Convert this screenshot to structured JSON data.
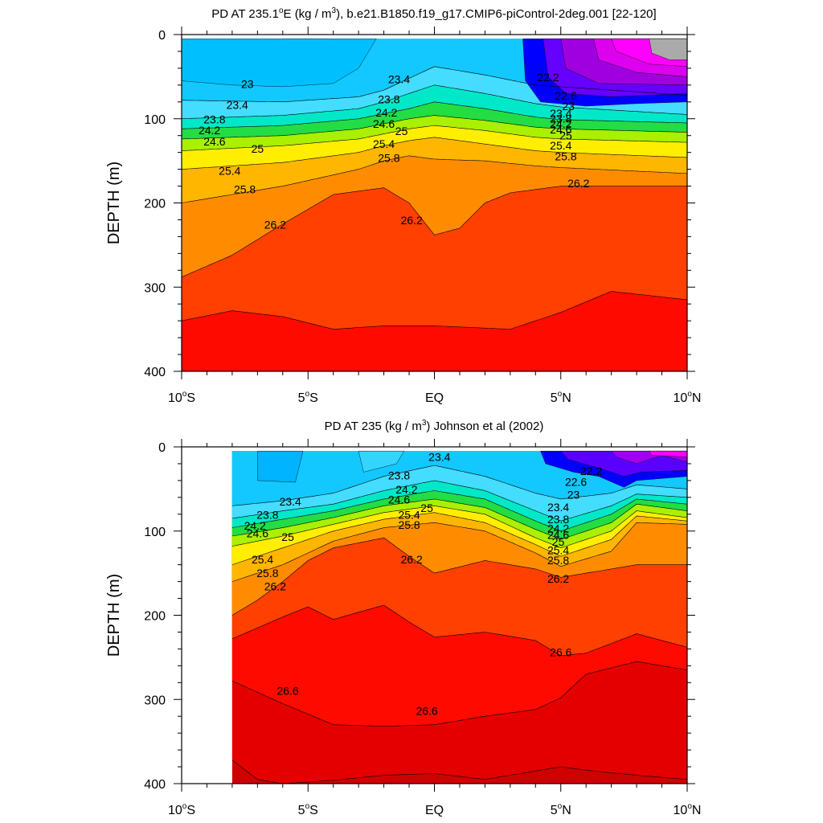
{
  "chart_data": [
    {
      "type": "contour",
      "title": "PD AT 235.1°E (kg / m³), b.e21.B1850.f19_g17.CMIP6-piControl-2deg.001 [22-120]",
      "title_parts": {
        "prefix": "PD AT 235.1",
        "deg": "o",
        "mid": "E (kg / m",
        "sup": "3",
        "suffix": "), b.e21.B1850.f19_g17.CMIP6-piControl-2deg.001 [22-120]"
      },
      "ylabel": "DEPTH (m)",
      "xlabel": "",
      "x_range": [
        -10,
        10
      ],
      "y_range": [
        0,
        400
      ],
      "y_reversed": true,
      "x_ticks": [
        {
          "value": -10,
          "num": "10",
          "deg": "o",
          "hem": "S"
        },
        {
          "value": -5,
          "num": "5",
          "deg": "o",
          "hem": "S"
        },
        {
          "value": 0,
          "num": "EQ",
          "deg": "",
          "hem": ""
        },
        {
          "value": 5,
          "num": "5",
          "deg": "o",
          "hem": "N"
        },
        {
          "value": 10,
          "num": "10",
          "deg": "o",
          "hem": "N"
        }
      ],
      "y_ticks": [
        0,
        100,
        200,
        300,
        400
      ],
      "data_x_start": -10,
      "top_depth": 5,
      "contour_depths_m": [
        {
          "sigma": 23.4,
          "x": [
            -10,
            -6,
            -3,
            -2,
            -1,
            0,
            2,
            4,
            5,
            10
          ],
          "depth": [
            78,
            80,
            74,
            66,
            52,
            38,
            48,
            60,
            62,
            72
          ]
        },
        {
          "sigma": 23.8,
          "x": [
            -10,
            -6,
            -3,
            -2,
            -1,
            0,
            2,
            4,
            5,
            10
          ],
          "depth": [
            100,
            96,
            88,
            80,
            70,
            60,
            70,
            82,
            86,
            95
          ]
        },
        {
          "sigma": 24.2,
          "x": [
            -10,
            -6,
            -3,
            -2,
            -1,
            0,
            2,
            4,
            5,
            10
          ],
          "depth": [
            112,
            108,
            100,
            94,
            88,
            80,
            88,
            98,
            101,
            105
          ]
        },
        {
          "sigma": 24.6,
          "x": [
            -10,
            -6,
            -3,
            -2,
            -1,
            0,
            2,
            4,
            5,
            10
          ],
          "depth": [
            124,
            120,
            112,
            106,
            100,
            96,
            102,
            110,
            112,
            116
          ]
        },
        {
          "sigma": 25,
          "x": [
            -10,
            -6,
            -3,
            -2,
            -1,
            0,
            2,
            4,
            5,
            10
          ],
          "depth": [
            138,
            132,
            124,
            118,
            112,
            108,
            114,
            122,
            124,
            128
          ]
        },
        {
          "sigma": 25.4,
          "x": [
            -10,
            -6,
            -3,
            -2,
            -1,
            0,
            2,
            4,
            5,
            10
          ],
          "depth": [
            160,
            152,
            140,
            132,
            126,
            122,
            130,
            138,
            140,
            146
          ]
        },
        {
          "sigma": 25.8,
          "x": [
            -10,
            -6,
            -3,
            -2,
            -1,
            0,
            2,
            4,
            5,
            10
          ],
          "depth": [
            200,
            180,
            160,
            150,
            144,
            148,
            150,
            156,
            158,
            165
          ]
        },
        {
          "sigma": 26.2,
          "x": [
            -10,
            -8,
            -6,
            -4,
            -2,
            -1,
            0,
            1,
            2,
            3,
            5,
            8,
            10
          ],
          "depth": [
            288,
            262,
            225,
            190,
            182,
            200,
            238,
            230,
            200,
            188,
            180,
            180,
            180
          ]
        },
        {
          "sigma": 26.6,
          "x": [
            -10,
            -8,
            -6,
            -4,
            -2,
            0,
            3,
            5,
            7,
            10
          ],
          "depth": [
            340,
            328,
            335,
            350,
            346,
            346,
            350,
            330,
            305,
            315
          ]
        }
      ],
      "contour_labels": [
        {
          "text": "23",
          "x": -7.4,
          "depth": 60
        },
        {
          "text": "23.4",
          "x": -7.8,
          "depth": 85
        },
        {
          "text": "23.8",
          "x": -8.7,
          "depth": 102
        },
        {
          "text": "24.2",
          "x": -8.9,
          "depth": 115
        },
        {
          "text": "24.6",
          "x": -8.7,
          "depth": 128
        },
        {
          "text": "25",
          "x": -7.0,
          "depth": 137
        },
        {
          "text": "25.4",
          "x": -8.1,
          "depth": 163
        },
        {
          "text": "25.8",
          "x": -7.5,
          "depth": 185
        },
        {
          "text": "26.2",
          "x": -6.3,
          "depth": 227
        },
        {
          "text": "23.4",
          "x": -1.4,
          "depth": 54
        },
        {
          "text": "23.8",
          "x": -1.8,
          "depth": 78
        },
        {
          "text": "24.2",
          "x": -1.9,
          "depth": 94
        },
        {
          "text": "24.6",
          "x": -2.0,
          "depth": 107
        },
        {
          "text": "25",
          "x": -1.3,
          "depth": 116
        },
        {
          "text": "25.4",
          "x": -2.0,
          "depth": 131
        },
        {
          "text": "25.8",
          "x": -1.8,
          "depth": 148
        },
        {
          "text": "26.2",
          "x": -0.9,
          "depth": 222
        },
        {
          "text": "22.2",
          "x": 4.5,
          "depth": 52
        },
        {
          "text": "22.6",
          "x": 5.2,
          "depth": 74
        },
        {
          "text": "23",
          "x": 5.3,
          "depth": 86
        },
        {
          "text": "23.4",
          "x": 5.0,
          "depth": 95
        },
        {
          "text": "23.8",
          "x": 5.0,
          "depth": 101
        },
        {
          "text": "24.2",
          "x": 5.0,
          "depth": 107
        },
        {
          "text": "24.6",
          "x": 5.0,
          "depth": 114
        },
        {
          "text": "25",
          "x": 5.2,
          "depth": 121
        },
        {
          "text": "25.4",
          "x": 5.0,
          "depth": 133
        },
        {
          "text": "25.8",
          "x": 5.2,
          "depth": 146
        },
        {
          "text": "26.2",
          "x": 5.7,
          "depth": 178
        }
      ]
    },
    {
      "type": "contour",
      "title": "PD AT 235 (kg / m³) Johnson et al (2002)",
      "title_parts": {
        "prefix": "PD AT 235",
        "deg": "",
        "mid": " (kg / m",
        "sup": "3",
        "suffix": ") Johnson et al (2002)"
      },
      "ylabel": "DEPTH (m)",
      "xlabel": "",
      "x_range": [
        -10,
        10
      ],
      "y_range": [
        0,
        400
      ],
      "y_reversed": true,
      "x_ticks": [
        {
          "value": -10,
          "num": "10",
          "deg": "o",
          "hem": "S"
        },
        {
          "value": -5,
          "num": "5",
          "deg": "o",
          "hem": "S"
        },
        {
          "value": 0,
          "num": "EQ",
          "deg": "",
          "hem": ""
        },
        {
          "value": 5,
          "num": "5",
          "deg": "o",
          "hem": "N"
        },
        {
          "value": 10,
          "num": "10",
          "deg": "o",
          "hem": "N"
        }
      ],
      "y_ticks": [
        0,
        100,
        200,
        300,
        400
      ],
      "data_x_start": -8,
      "top_depth": 5,
      "contour_depths_m": [
        {
          "sigma": 23.4,
          "x": [
            -8,
            -6,
            -4,
            -2,
            0,
            2,
            4,
            5,
            7,
            8,
            10
          ],
          "depth": [
            70,
            64,
            55,
            35,
            22,
            35,
            55,
            62,
            55,
            45,
            50
          ]
        },
        {
          "sigma": 23.8,
          "x": [
            -8,
            -6,
            -4,
            -2,
            0,
            2,
            4,
            5,
            7,
            8,
            10
          ],
          "depth": [
            85,
            76,
            68,
            52,
            40,
            52,
            76,
            88,
            70,
            56,
            60
          ]
        },
        {
          "sigma": 24.2,
          "x": [
            -8,
            -6,
            -4,
            -2,
            0,
            2,
            4,
            5,
            7,
            8,
            10
          ],
          "depth": [
            96,
            86,
            76,
            62,
            52,
            62,
            88,
            100,
            80,
            62,
            68
          ]
        },
        {
          "sigma": 24.6,
          "x": [
            -8,
            -6,
            -4,
            -2,
            0,
            2,
            4,
            5,
            7,
            8,
            10
          ],
          "depth": [
            106,
            96,
            84,
            70,
            62,
            72,
            98,
            110,
            90,
            68,
            76
          ]
        },
        {
          "sigma": 25,
          "x": [
            -8,
            -6,
            -4,
            -2,
            0,
            2,
            4,
            5,
            7,
            8,
            10
          ],
          "depth": [
            118,
            106,
            92,
            78,
            70,
            80,
            108,
            120,
            100,
            76,
            84
          ]
        },
        {
          "sigma": 25.4,
          "x": [
            -8,
            -6,
            -4,
            -2,
            0,
            2,
            4,
            5,
            7,
            8,
            10
          ],
          "depth": [
            140,
            120,
            100,
            86,
            78,
            90,
            116,
            130,
            110,
            82,
            88
          ]
        },
        {
          "sigma": 25.8,
          "x": [
            -8,
            -6,
            -4,
            -2,
            0,
            2,
            4,
            5,
            7,
            8,
            10
          ],
          "depth": [
            160,
            140,
            112,
            96,
            90,
            100,
            126,
            142,
            124,
            90,
            92
          ]
        },
        {
          "sigma": 26.2,
          "x": [
            -8,
            -7,
            -6,
            -5,
            -4,
            -2,
            -1,
            0,
            2,
            4,
            5,
            6,
            8,
            10
          ],
          "depth": [
            200,
            182,
            160,
            135,
            120,
            108,
            130,
            150,
            135,
            145,
            155,
            150,
            140,
            140
          ]
        },
        {
          "sigma": 26.6,
          "x": [
            -8,
            -6,
            -5,
            -4,
            -2,
            -1,
            0,
            2,
            4,
            5,
            6,
            8,
            10
          ],
          "depth": [
            228,
            202,
            190,
            205,
            188,
            208,
            226,
            220,
            230,
            248,
            245,
            222,
            238
          ]
        },
        {
          "sigma": 27,
          "x": [
            -8,
            -6,
            -4,
            -2,
            0,
            2,
            4,
            5,
            6,
            8,
            10
          ],
          "depth": [
            278,
            305,
            330,
            332,
            330,
            320,
            312,
            298,
            270,
            255,
            265
          ]
        },
        {
          "sigma": 27.4,
          "x": [
            -8,
            -7,
            -6,
            -4,
            -2,
            0,
            2,
            4,
            5,
            6,
            8,
            10
          ],
          "depth": [
            372,
            395,
            400,
            396,
            390,
            388,
            395,
            385,
            380,
            384,
            390,
            395
          ]
        }
      ],
      "contour_labels": [
        {
          "text": "23.4",
          "x": 0.2,
          "depth": 13
        },
        {
          "text": "22.2",
          "x": 6.2,
          "depth": 30
        },
        {
          "text": "22.6",
          "x": 5.6,
          "depth": 43
        },
        {
          "text": "23",
          "x": 5.5,
          "depth": 58
        },
        {
          "text": "23.8",
          "x": -1.4,
          "depth": 35
        },
        {
          "text": "24.2",
          "x": -1.1,
          "depth": 52
        },
        {
          "text": "24.6",
          "x": -1.4,
          "depth": 64
        },
        {
          "text": "25",
          "x": -0.3,
          "depth": 74
        },
        {
          "text": "25.4",
          "x": -1.0,
          "depth": 82
        },
        {
          "text": "25.8",
          "x": -1.0,
          "depth": 94
        },
        {
          "text": "26.2",
          "x": -0.9,
          "depth": 135
        },
        {
          "text": "23.4",
          "x": -5.7,
          "depth": 66
        },
        {
          "text": "23.8",
          "x": -6.6,
          "depth": 82
        },
        {
          "text": "24.2",
          "x": -7.1,
          "depth": 95
        },
        {
          "text": "24.6",
          "x": -7.0,
          "depth": 104
        },
        {
          "text": "25",
          "x": -5.8,
          "depth": 108
        },
        {
          "text": "25.4",
          "x": -6.8,
          "depth": 135
        },
        {
          "text": "25.8",
          "x": -6.6,
          "depth": 151
        },
        {
          "text": "26.2",
          "x": -6.3,
          "depth": 167
        },
        {
          "text": "23.4",
          "x": 4.9,
          "depth": 73
        },
        {
          "text": "23.8",
          "x": 4.9,
          "depth": 87
        },
        {
          "text": "24.2",
          "x": 4.9,
          "depth": 98
        },
        {
          "text": "24.6",
          "x": 4.9,
          "depth": 106
        },
        {
          "text": "25",
          "x": 4.9,
          "depth": 114
        },
        {
          "text": "25.4",
          "x": 4.9,
          "depth": 124
        },
        {
          "text": "25.8",
          "x": 4.9,
          "depth": 136
        },
        {
          "text": "26.2",
          "x": 4.9,
          "depth": 158
        },
        {
          "text": "26.6",
          "x": 5.0,
          "depth": 245
        },
        {
          "text": "26.6",
          "x": -5.8,
          "depth": 291
        },
        {
          "text": "26.6",
          "x": -0.3,
          "depth": 315
        }
      ]
    }
  ],
  "colormap": {
    "sigma_levels": [
      21.4,
      21.8,
      22.2,
      22.6,
      23.0,
      23.4,
      23.8,
      24.2,
      24.6,
      25.0,
      25.4,
      25.8,
      26.2,
      26.6,
      27.0,
      27.4
    ],
    "colors": [
      "#ff00ff",
      "#c400e8",
      "#8a00e0",
      "#5a00ff",
      "#0000ff",
      "#0a50ff",
      "#009cff",
      "#00c0ff",
      "#3ad8ff",
      "#60e8ff",
      "#00e0c0",
      "#00cc44",
      "#55e000",
      "#c8f000",
      "#ffff00",
      "#ffd800",
      "#ffb000",
      "#ff9200",
      "#ff7000",
      "#ff5000",
      "#ff3000",
      "#ff0000",
      "#ee0000",
      "#dd0000",
      "#cc0000"
    ]
  }
}
